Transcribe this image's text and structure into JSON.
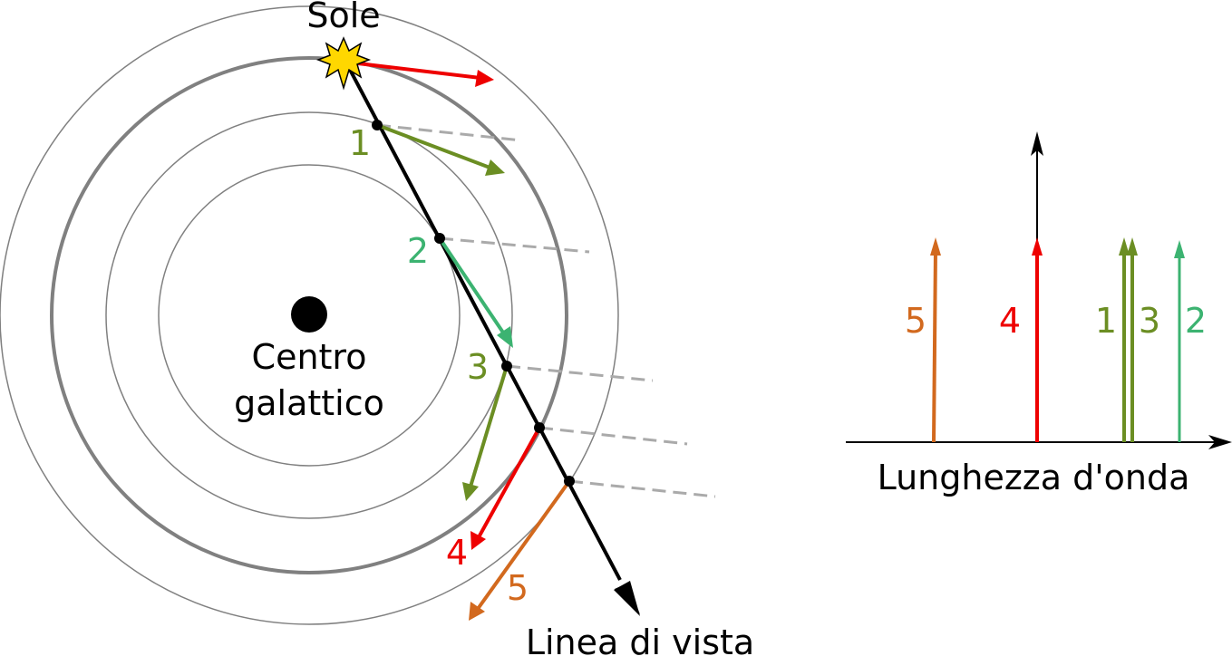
{
  "labels": {
    "sun": "Sole",
    "galactic_center_line1": "Centro",
    "galactic_center_line2": "galattico",
    "line_of_sight": "Linea di vista",
    "wavelength_axis": "Lunghezza d'onda"
  },
  "points": [
    {
      "id": "1",
      "color": "#6b8e23"
    },
    {
      "id": "2",
      "color": "#3cb371"
    },
    {
      "id": "3",
      "color": "#6b8e23"
    },
    {
      "id": "4",
      "color": "#ee0000"
    },
    {
      "id": "5",
      "color": "#d2691e"
    }
  ],
  "spectrum": {
    "order": [
      "5",
      "4",
      "1",
      "3",
      "2"
    ]
  },
  "colors": {
    "sun_fill": "#ffd700",
    "sun_velocity": "#ee0000",
    "orbit_thin": "#808080",
    "orbit_solar": "#808080",
    "dashed": "#aaaaaa",
    "line_of_sight": "#000000"
  }
}
